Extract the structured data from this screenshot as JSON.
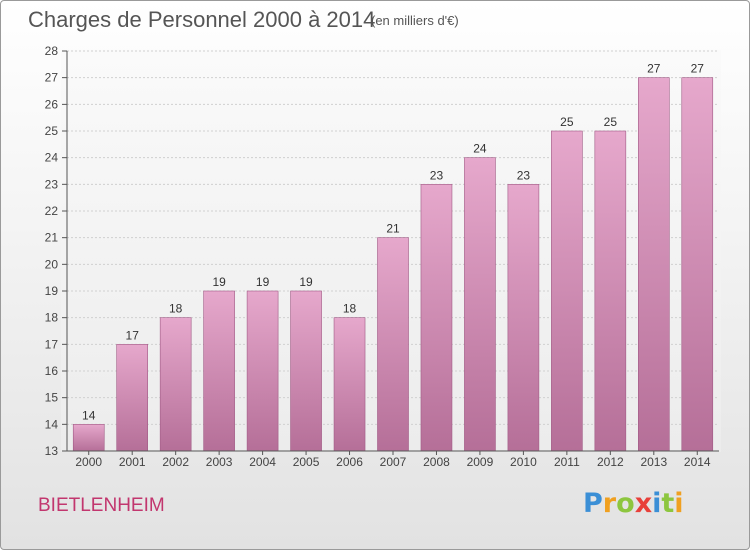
{
  "chart_data": {
    "type": "bar",
    "title": "Charges de Personnel 2000 à 2014",
    "subtitle": "(en milliers d'€)",
    "categories": [
      "2000",
      "2001",
      "2002",
      "2003",
      "2004",
      "2005",
      "2006",
      "2007",
      "2008",
      "2009",
      "2010",
      "2011",
      "2012",
      "2013",
      "2014"
    ],
    "values": [
      14,
      17,
      18,
      19,
      19,
      19,
      18,
      21,
      23,
      24,
      23,
      25,
      25,
      27,
      27
    ],
    "ylim": [
      13,
      28
    ],
    "yticks": [
      13,
      14,
      15,
      16,
      17,
      18,
      19,
      20,
      21,
      22,
      23,
      24,
      25,
      26,
      27,
      28
    ],
    "grid": true,
    "bar_color_top": "#e6a8cc",
    "bar_color_bottom": "#b56f98"
  },
  "commune": "BIETLENHEIM",
  "logo": {
    "letters": [
      "P",
      "r",
      "o",
      "x",
      "i",
      "t",
      "i"
    ],
    "colors": [
      "#3b8fd6",
      "#f0a020",
      "#8dc63f",
      "#e8403a",
      "#3b8fd6",
      "#8dc63f",
      "#f0a020"
    ]
  }
}
